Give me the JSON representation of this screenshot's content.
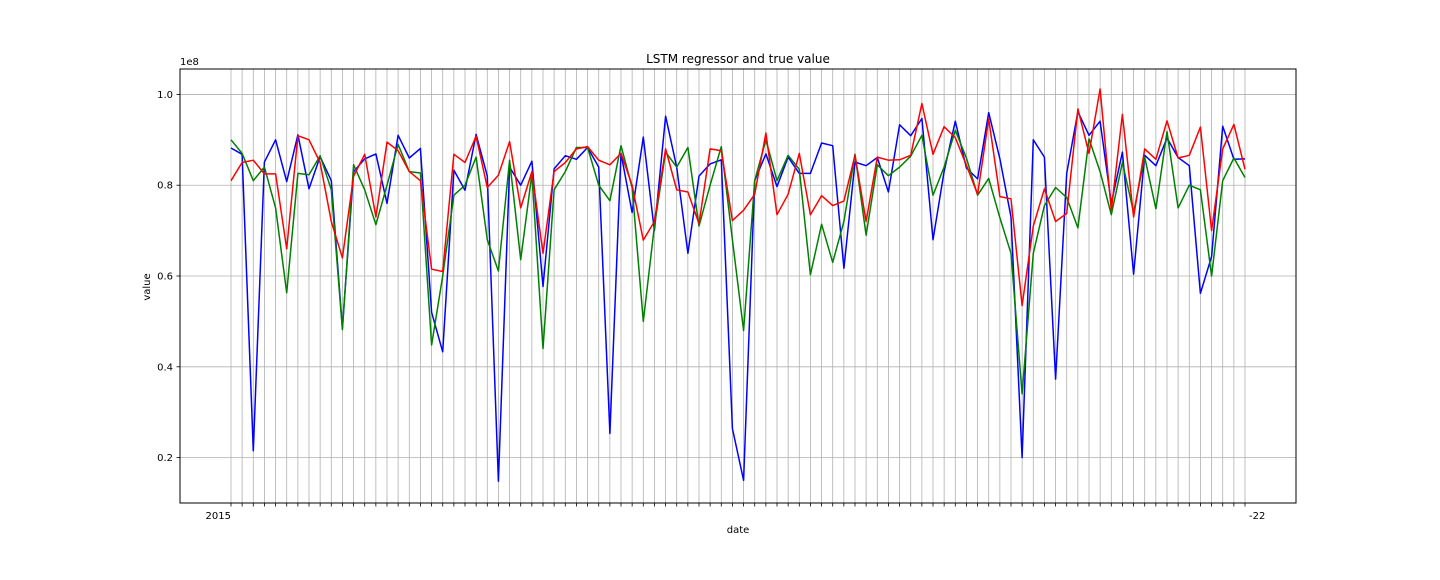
{
  "chart_data": {
    "type": "line",
    "title": "LSTM regressor and true value",
    "xlabel": "date",
    "ylabel": "value",
    "y_offset_label": "1e8",
    "ylim": [
      0.1,
      1.056
    ],
    "yticks": [
      0.2,
      0.4,
      0.6,
      0.8,
      1.0
    ],
    "ytick_labels": [
      "0.2",
      "0.4",
      "0.6",
      "0.8",
      "1.0"
    ],
    "grid": true,
    "x_tick_labels_note": "x tick labels are dates that overlap into an illegible run; only the first and last fragments are readable",
    "x_first_label_fragment": "2015",
    "x_last_label_fragment": "-22",
    "series": [
      {
        "color": "#0000ff",
        "values": [
          0.882,
          0.868,
          0.215,
          0.851,
          0.9,
          0.808,
          0.911,
          0.792,
          0.863,
          0.81,
          0.485,
          0.83,
          0.858,
          0.869,
          0.76,
          0.91,
          0.86,
          0.881,
          0.52,
          0.433,
          0.833,
          0.789,
          0.912,
          0.82,
          0.148,
          0.84,
          0.8,
          0.853,
          0.577,
          0.836,
          0.865,
          0.857,
          0.883,
          0.84,
          0.253,
          0.87,
          0.74,
          0.906,
          0.7,
          0.952,
          0.84,
          0.65,
          0.82,
          0.847,
          0.856,
          0.264,
          0.15,
          0.81,
          0.869,
          0.797,
          0.862,
          0.826,
          0.826,
          0.893,
          0.887,
          0.617,
          0.851,
          0.843,
          0.861,
          0.785,
          0.933,
          0.909,
          0.947,
          0.68,
          0.83,
          0.941,
          0.838,
          0.814,
          0.96,
          0.858,
          0.73,
          0.2,
          0.9,
          0.862,
          0.373,
          0.826,
          0.962,
          0.91,
          0.941,
          0.76,
          0.873,
          0.604,
          0.866,
          0.843,
          0.904,
          0.861,
          0.843,
          0.562,
          0.643,
          0.93,
          0.857,
          0.858
        ]
      },
      {
        "color": "#008000",
        "values": [
          0.9,
          0.87,
          0.81,
          0.84,
          0.75,
          0.563,
          0.826,
          0.823,
          0.865,
          0.79,
          0.482,
          0.845,
          0.79,
          0.713,
          0.8,
          0.89,
          0.83,
          0.827,
          0.448,
          0.6,
          0.778,
          0.8,
          0.862,
          0.68,
          0.611,
          0.855,
          0.636,
          0.825,
          0.44,
          0.79,
          0.83,
          0.883,
          0.883,
          0.8,
          0.766,
          0.887,
          0.795,
          0.5,
          0.71,
          0.873,
          0.84,
          0.883,
          0.71,
          0.8,
          0.885,
          0.68,
          0.48,
          0.81,
          0.9,
          0.81,
          0.866,
          0.835,
          0.603,
          0.714,
          0.63,
          0.72,
          0.868,
          0.69,
          0.845,
          0.821,
          0.84,
          0.864,
          0.91,
          0.778,
          0.84,
          0.921,
          0.86,
          0.778,
          0.815,
          0.728,
          0.65,
          0.34,
          0.65,
          0.755,
          0.795,
          0.773,
          0.706,
          0.902,
          0.83,
          0.735,
          0.85,
          0.74,
          0.862,
          0.748,
          0.918,
          0.75,
          0.8,
          0.79,
          0.6,
          0.81,
          0.86,
          0.817
        ]
      },
      {
        "color": "#ff0000",
        "values": [
          0.81,
          0.85,
          0.855,
          0.825,
          0.825,
          0.66,
          0.909,
          0.9,
          0.85,
          0.72,
          0.64,
          0.82,
          0.868,
          0.73,
          0.895,
          0.876,
          0.83,
          0.81,
          0.615,
          0.61,
          0.868,
          0.85,
          0.908,
          0.795,
          0.822,
          0.896,
          0.75,
          0.83,
          0.65,
          0.83,
          0.85,
          0.88,
          0.885,
          0.855,
          0.845,
          0.87,
          0.8,
          0.679,
          0.72,
          0.88,
          0.79,
          0.785,
          0.715,
          0.88,
          0.876,
          0.722,
          0.745,
          0.78,
          0.915,
          0.735,
          0.78,
          0.87,
          0.735,
          0.777,
          0.755,
          0.765,
          0.866,
          0.72,
          0.862,
          0.855,
          0.856,
          0.866,
          0.98,
          0.868,
          0.929,
          0.905,
          0.844,
          0.78,
          0.946,
          0.775,
          0.77,
          0.535,
          0.71,
          0.792,
          0.72,
          0.738,
          0.968,
          0.87,
          1.012,
          0.745,
          0.956,
          0.73,
          0.88,
          0.857,
          0.942,
          0.86,
          0.866,
          0.928,
          0.7,
          0.88,
          0.934,
          0.835
        ]
      }
    ]
  }
}
